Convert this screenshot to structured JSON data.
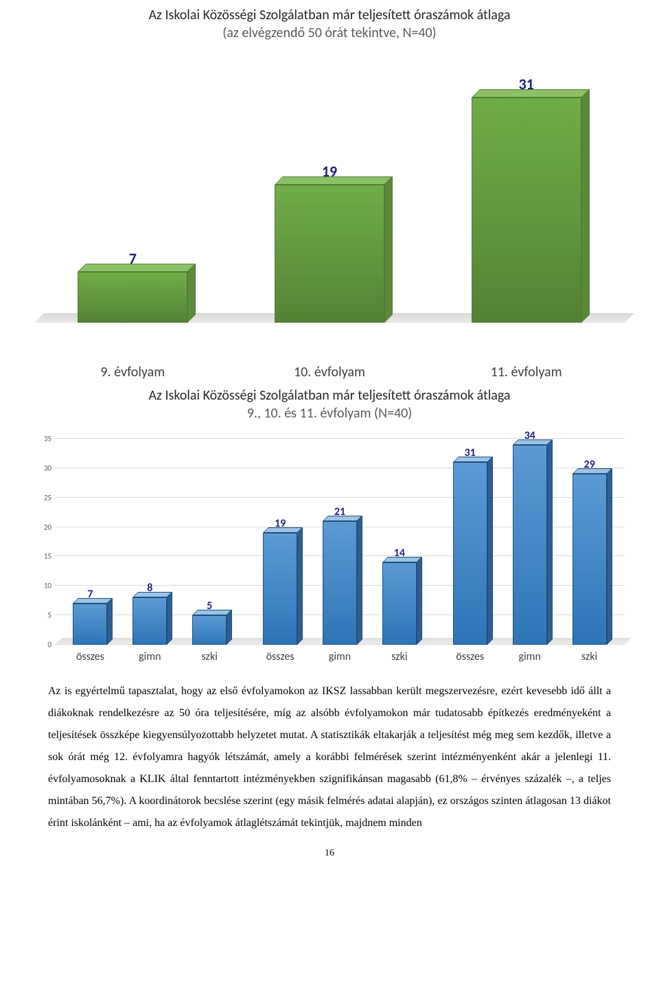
{
  "chart1": {
    "type": "bar",
    "title": "Az Iskolai Közösségi Szolgálatban már teljesített óraszámok átlaga",
    "subtitle": "(az elvégzendő 50 órát tekintve, N=40)",
    "categories": [
      "9. évfolyam",
      "10. évfolyam",
      "11. évfolyam"
    ],
    "values": [
      7,
      19,
      31
    ],
    "ymax": 35,
    "bar_color_top": "#8cc168",
    "bar_color_front": "#70ad47",
    "value_color": "#1f1f7a",
    "value_fontsize": 22,
    "label_fontsize": 20,
    "title_fontsize": 20,
    "background_color": "#ffffff"
  },
  "chart2": {
    "type": "bar",
    "title": "Az Iskolai Közösségi Szolgálatban már teljesített óraszámok átlaga",
    "subtitle": "9., 10. és 11. évfolyam (N=40)",
    "groups": [
      {
        "labels": [
          "összes",
          "gimn",
          "szki"
        ],
        "values": [
          7,
          8,
          5
        ]
      },
      {
        "labels": [
          "összes",
          "gimn",
          "szki"
        ],
        "values": [
          19,
          21,
          14
        ]
      },
      {
        "labels": [
          "összes",
          "gimn",
          "szki"
        ],
        "values": [
          31,
          34,
          29
        ]
      }
    ],
    "ylim": [
      0,
      35
    ],
    "ytick_step": 5,
    "yticks": [
      0,
      5,
      10,
      15,
      20,
      25,
      30,
      35
    ],
    "bar_color_top": "#9dc3e6",
    "bar_color_front": "#5b9bd5",
    "value_color": "#1f1f7a",
    "grid_color": "#d9d9d9",
    "value_fontsize": 16,
    "label_fontsize": 16,
    "ytick_fontsize": 11,
    "title_fontsize": 20,
    "background_color": "#ffffff"
  },
  "body": {
    "paragraph": "Az is egyértelmű tapasztalat, hogy az első évfolyamokon az IKSZ lassabban került megszervezésre, ezért kevesebb idő állt a diákoknak rendelkezésre az 50 óra teljesítésére, míg az alsóbb évfolyamokon már tudatosabb építkezés eredményeként a teljesítések összképe kiegyensúlyozottabb helyzetet mutat. A statisztikák eltakarják a teljesítést még meg sem kezdők, illetve a sok órát még 12. évfolyamra hagyók létszámát, amely a korábbi felmérések szerint intézményenként akár a jelenlegi 11. évfolyamosoknak a KLIK által fenntartott intézményekben szignifikánsan magasabb (61,8% – érvényes százalék –, a teljes mintában 56,7%). A koordinátorok becslése szerint (egy másik felmérés adatai alapján), ez országos szinten átlagosan 13 diákot érint iskolánként – ami, ha az évfolyamok átlaglétszámát tekintjük, majdnem minden"
  },
  "page_number": "16"
}
